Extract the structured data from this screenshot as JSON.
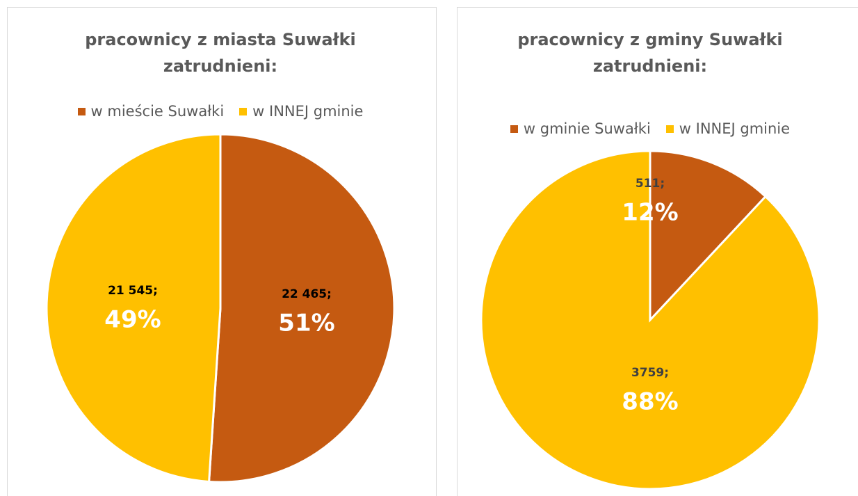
{
  "chart_data": [
    {
      "type": "pie",
      "title": "pracownicy z miasta Suwałki zatrudnieni:",
      "categories": [
        "w mieście Suwałki",
        "w INNEJ gminie"
      ],
      "values": [
        22465,
        21545
      ],
      "value_labels": [
        "22 465;",
        "21 545;"
      ],
      "percent_labels": [
        "51%",
        "49%"
      ],
      "colors": [
        "#c55a11",
        "#ffc000"
      ],
      "legend": "top"
    },
    {
      "type": "pie",
      "title": "pracownicy z gminy Suwałki zatrudnieni:",
      "categories": [
        "w gminie Suwałki",
        "w INNEJ gminie"
      ],
      "values": [
        511,
        3759
      ],
      "value_labels": [
        "511;",
        "3759;"
      ],
      "percent_labels": [
        "12%",
        "88%"
      ],
      "colors": [
        "#c55a11",
        "#ffc000"
      ],
      "legend": "top"
    }
  ]
}
